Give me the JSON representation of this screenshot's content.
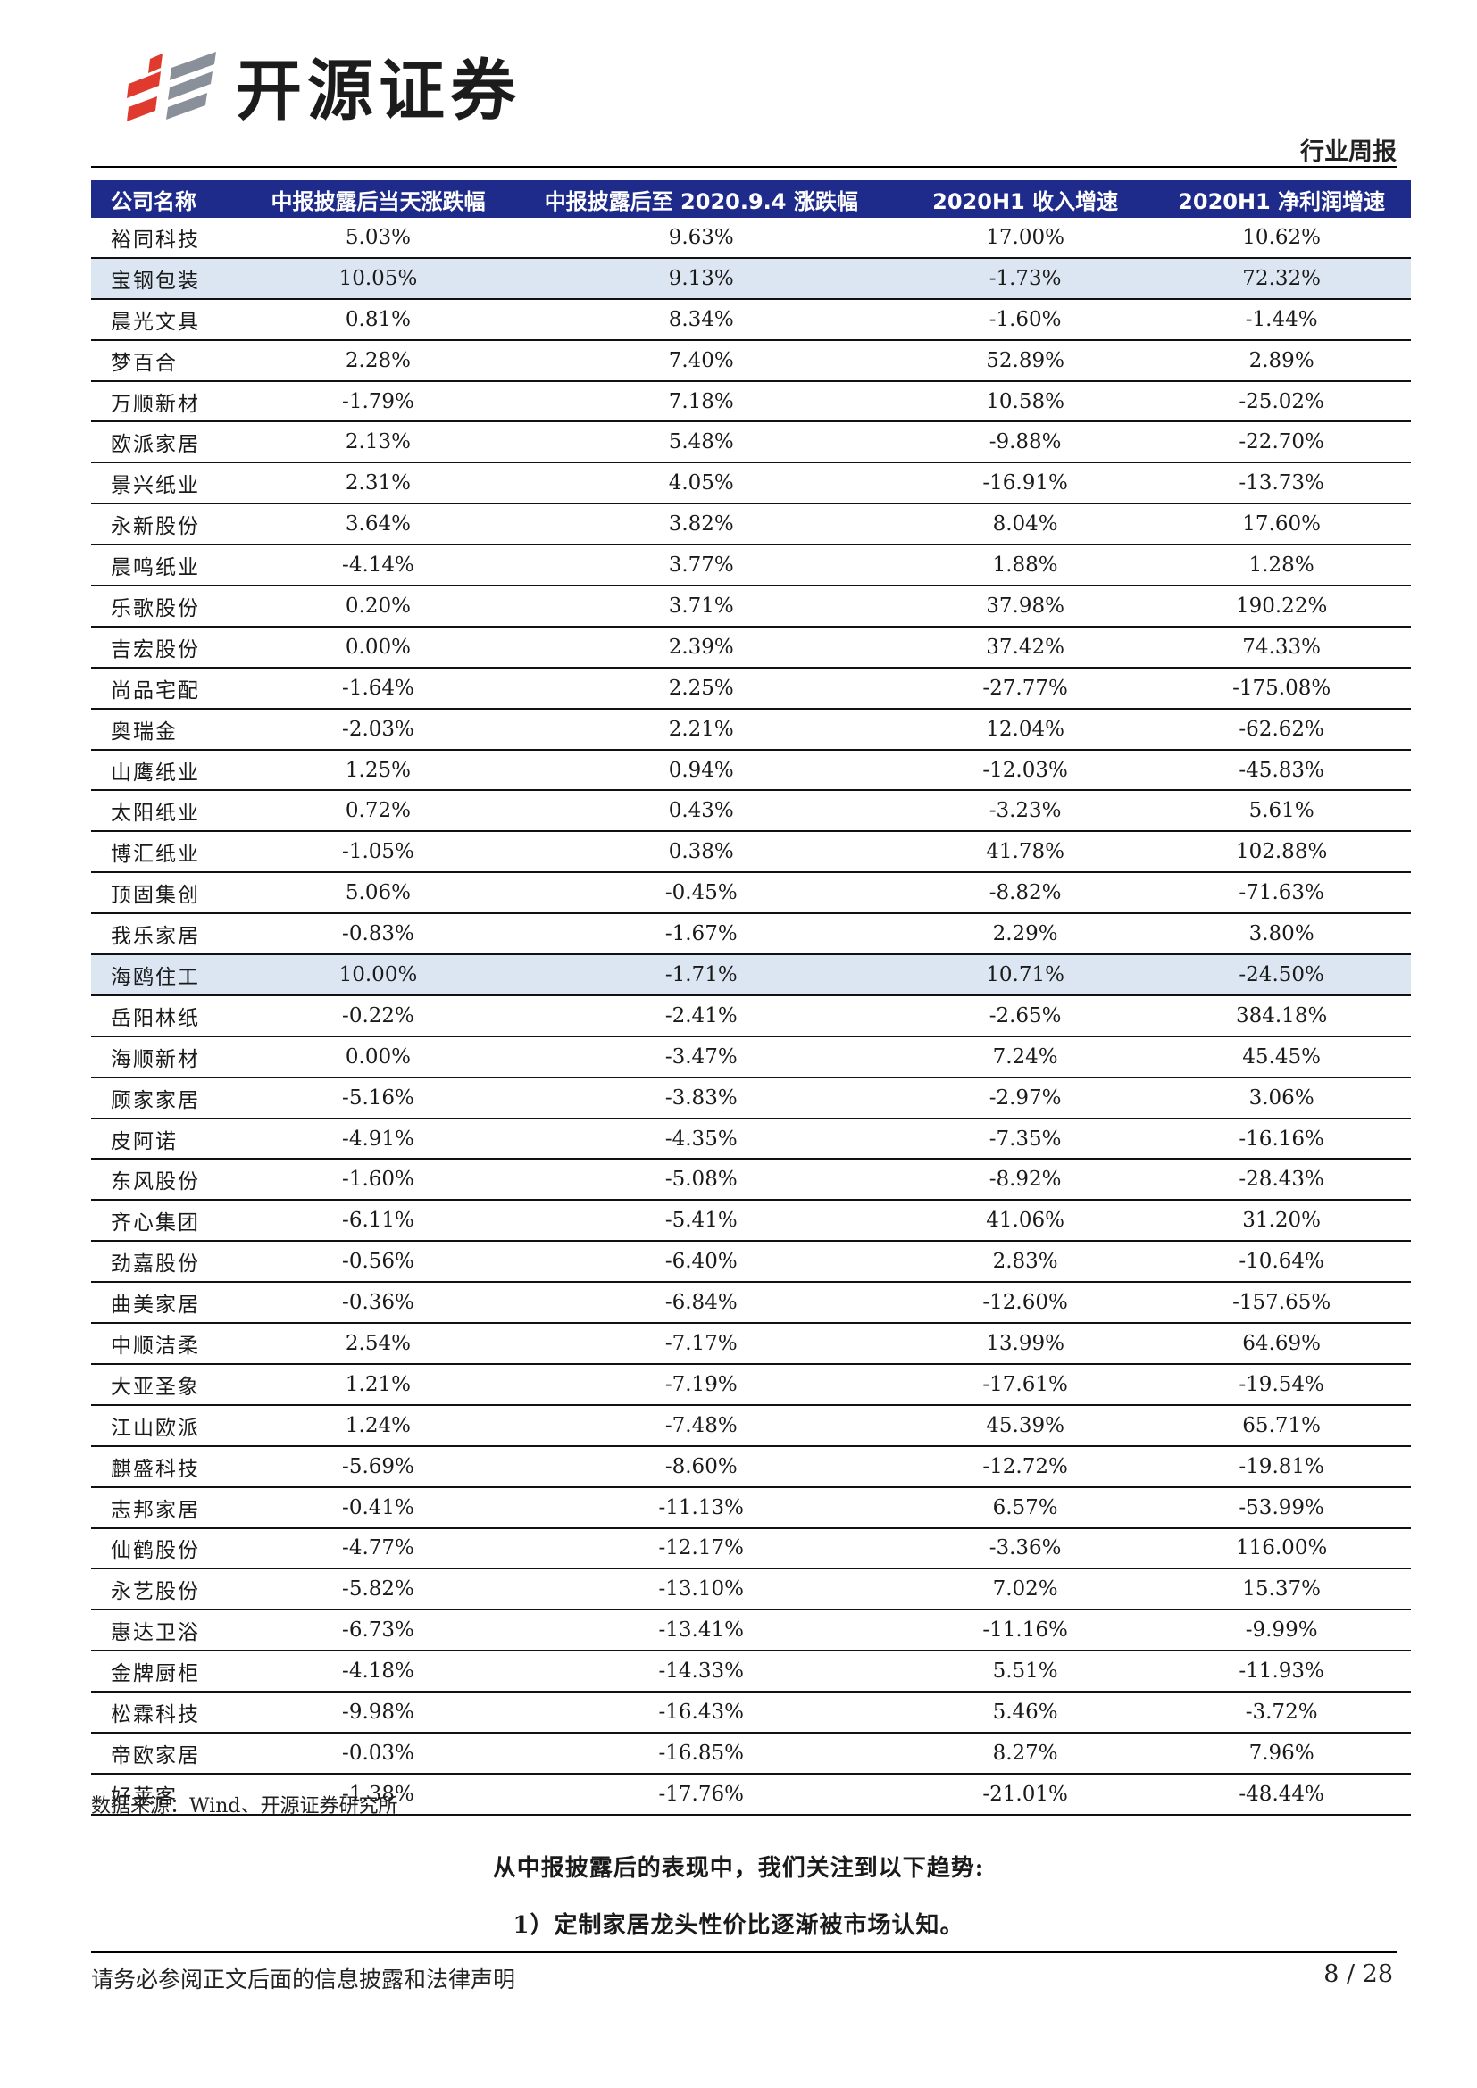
{
  "header": {
    "brand": "开源证券",
    "doc_type": "行业周报",
    "colors": {
      "logo_red": "#e03a2f",
      "logo_gray": "#8a9099"
    }
  },
  "table": {
    "columns": [
      "公司名称",
      "中报披露后当天涨跌幅",
      "中报披露后至 2020.9.4 涨跌幅",
      "2020H1 收入增速",
      "2020H1 净利润增速"
    ],
    "header_bg": "#1f2b8a",
    "highlight_bg": "#dce6f2",
    "rows": [
      {
        "name": "裕同科技",
        "day": "5.03%",
        "since": "9.63%",
        "rev": "17.00%",
        "np": "10.62%",
        "hl": false
      },
      {
        "name": "宝钢包装",
        "day": "10.05%",
        "since": "9.13%",
        "rev": "-1.73%",
        "np": "72.32%",
        "hl": true
      },
      {
        "name": "晨光文具",
        "day": "0.81%",
        "since": "8.34%",
        "rev": "-1.60%",
        "np": "-1.44%",
        "hl": false
      },
      {
        "name": "梦百合",
        "day": "2.28%",
        "since": "7.40%",
        "rev": "52.89%",
        "np": "2.89%",
        "hl": false
      },
      {
        "name": "万顺新材",
        "day": "-1.79%",
        "since": "7.18%",
        "rev": "10.58%",
        "np": "-25.02%",
        "hl": false
      },
      {
        "name": "欧派家居",
        "day": "2.13%",
        "since": "5.48%",
        "rev": "-9.88%",
        "np": "-22.70%",
        "hl": false
      },
      {
        "name": "景兴纸业",
        "day": "2.31%",
        "since": "4.05%",
        "rev": "-16.91%",
        "np": "-13.73%",
        "hl": false
      },
      {
        "name": "永新股份",
        "day": "3.64%",
        "since": "3.82%",
        "rev": "8.04%",
        "np": "17.60%",
        "hl": false
      },
      {
        "name": "晨鸣纸业",
        "day": "-4.14%",
        "since": "3.77%",
        "rev": "1.88%",
        "np": "1.28%",
        "hl": false
      },
      {
        "name": "乐歌股份",
        "day": "0.20%",
        "since": "3.71%",
        "rev": "37.98%",
        "np": "190.22%",
        "hl": false
      },
      {
        "name": "吉宏股份",
        "day": "0.00%",
        "since": "2.39%",
        "rev": "37.42%",
        "np": "74.33%",
        "hl": false
      },
      {
        "name": "尚品宅配",
        "day": "-1.64%",
        "since": "2.25%",
        "rev": "-27.77%",
        "np": "-175.08%",
        "hl": false
      },
      {
        "name": "奥瑞金",
        "day": "-2.03%",
        "since": "2.21%",
        "rev": "12.04%",
        "np": "-62.62%",
        "hl": false
      },
      {
        "name": "山鹰纸业",
        "day": "1.25%",
        "since": "0.94%",
        "rev": "-12.03%",
        "np": "-45.83%",
        "hl": false
      },
      {
        "name": "太阳纸业",
        "day": "0.72%",
        "since": "0.43%",
        "rev": "-3.23%",
        "np": "5.61%",
        "hl": false
      },
      {
        "name": "博汇纸业",
        "day": "-1.05%",
        "since": "0.38%",
        "rev": "41.78%",
        "np": "102.88%",
        "hl": false
      },
      {
        "name": "顶固集创",
        "day": "5.06%",
        "since": "-0.45%",
        "rev": "-8.82%",
        "np": "-71.63%",
        "hl": false
      },
      {
        "name": "我乐家居",
        "day": "-0.83%",
        "since": "-1.67%",
        "rev": "2.29%",
        "np": "3.80%",
        "hl": false
      },
      {
        "name": "海鸥住工",
        "day": "10.00%",
        "since": "-1.71%",
        "rev": "10.71%",
        "np": "-24.50%",
        "hl": true
      },
      {
        "name": "岳阳林纸",
        "day": "-0.22%",
        "since": "-2.41%",
        "rev": "-2.65%",
        "np": "384.18%",
        "hl": false
      },
      {
        "name": "海顺新材",
        "day": "0.00%",
        "since": "-3.47%",
        "rev": "7.24%",
        "np": "45.45%",
        "hl": false
      },
      {
        "name": "顾家家居",
        "day": "-5.16%",
        "since": "-3.83%",
        "rev": "-2.97%",
        "np": "3.06%",
        "hl": false
      },
      {
        "name": "皮阿诺",
        "day": "-4.91%",
        "since": "-4.35%",
        "rev": "-7.35%",
        "np": "-16.16%",
        "hl": false
      },
      {
        "name": "东风股份",
        "day": "-1.60%",
        "since": "-5.08%",
        "rev": "-8.92%",
        "np": "-28.43%",
        "hl": false
      },
      {
        "name": "齐心集团",
        "day": "-6.11%",
        "since": "-5.41%",
        "rev": "41.06%",
        "np": "31.20%",
        "hl": false
      },
      {
        "name": "劲嘉股份",
        "day": "-0.56%",
        "since": "-6.40%",
        "rev": "2.83%",
        "np": "-10.64%",
        "hl": false
      },
      {
        "name": "曲美家居",
        "day": "-0.36%",
        "since": "-6.84%",
        "rev": "-12.60%",
        "np": "-157.65%",
        "hl": false
      },
      {
        "name": "中顺洁柔",
        "day": "2.54%",
        "since": "-7.17%",
        "rev": "13.99%",
        "np": "64.69%",
        "hl": false
      },
      {
        "name": "大亚圣象",
        "day": "1.21%",
        "since": "-7.19%",
        "rev": "-17.61%",
        "np": "-19.54%",
        "hl": false
      },
      {
        "name": "江山欧派",
        "day": "1.24%",
        "since": "-7.48%",
        "rev": "45.39%",
        "np": "65.71%",
        "hl": false
      },
      {
        "name": "麒盛科技",
        "day": "-5.69%",
        "since": "-8.60%",
        "rev": "-12.72%",
        "np": "-19.81%",
        "hl": false
      },
      {
        "name": "志邦家居",
        "day": "-0.41%",
        "since": "-11.13%",
        "rev": "6.57%",
        "np": "-53.99%",
        "hl": false
      },
      {
        "name": "仙鹤股份",
        "day": "-4.77%",
        "since": "-12.17%",
        "rev": "-3.36%",
        "np": "116.00%",
        "hl": false
      },
      {
        "name": "永艺股份",
        "day": "-5.82%",
        "since": "-13.10%",
        "rev": "7.02%",
        "np": "15.37%",
        "hl": false
      },
      {
        "name": "惠达卫浴",
        "day": "-6.73%",
        "since": "-13.41%",
        "rev": "-11.16%",
        "np": "-9.99%",
        "hl": false
      },
      {
        "name": "金牌厨柜",
        "day": "-4.18%",
        "since": "-14.33%",
        "rev": "5.51%",
        "np": "-11.93%",
        "hl": false
      },
      {
        "name": "松霖科技",
        "day": "-9.98%",
        "since": "-16.43%",
        "rev": "5.46%",
        "np": "-3.72%",
        "hl": false
      },
      {
        "name": "帝欧家居",
        "day": "-0.03%",
        "since": "-16.85%",
        "rev": "8.27%",
        "np": "7.96%",
        "hl": false
      },
      {
        "name": "好莱客",
        "day": "-1.38%",
        "since": "-17.76%",
        "rev": "-21.01%",
        "np": "-48.44%",
        "hl": false
      }
    ]
  },
  "source": "数据来源：Wind、开源证券研究所",
  "body": {
    "p1": "从中报披露后的表现中，我们关注到以下趋势:",
    "p2": "1）定制家居龙头性价比逐渐被市场认知。"
  },
  "footer": {
    "disclaimer": "请务必参阅正文后面的信息披露和法律声明",
    "page": "8 / 28"
  }
}
